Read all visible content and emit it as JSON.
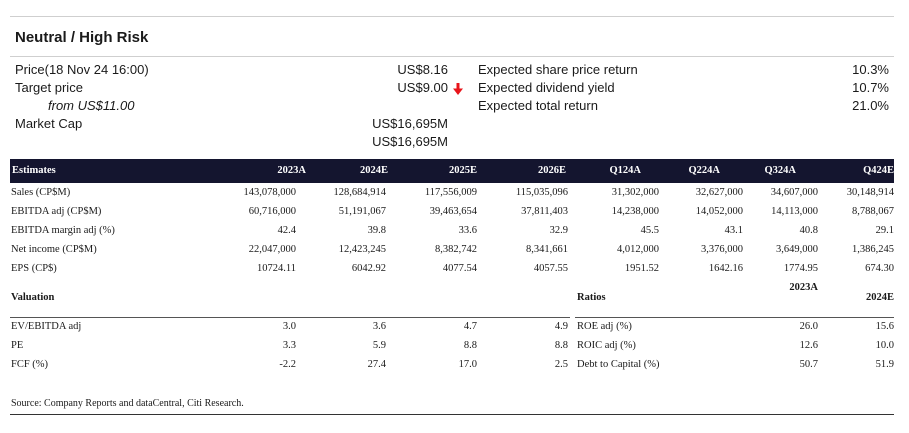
{
  "title": "Neutral / High Risk",
  "summary": {
    "price_label": "Price(18 Nov 24 16:00)",
    "price_value": "US$8.16",
    "target_label": "Target price",
    "target_value": "US$9.00",
    "target_arrow": "down-arrow-icon",
    "target_arrow_color": "#e8141a",
    "from_label": "from US$11.00",
    "marketcap_label": "Market Cap",
    "marketcap_value1": "US$16,695M",
    "marketcap_value2": "US$16,695M",
    "exp_share_label": "Expected share price return",
    "exp_share_value": "10.3%",
    "exp_div_label": "Expected dividend yield",
    "exp_div_value": "10.7%",
    "exp_total_label": "Expected total return",
    "exp_total_value": "21.0%"
  },
  "estimates": {
    "headers": [
      "Estimates",
      "2023A",
      "2024E",
      "2025E",
      "2026E",
      "Q124A",
      "Q224A",
      "Q324A",
      "Q424E"
    ],
    "rows": [
      [
        "Sales (CP$M)",
        "143,078,000",
        "128,684,914",
        "117,556,009",
        "115,035,096",
        "31,302,000",
        "32,627,000",
        "34,607,000",
        "30,148,914"
      ],
      [
        "EBITDA adj (CP$M)",
        "60,716,000",
        "51,191,067",
        "39,463,654",
        "37,811,403",
        "14,238,000",
        "14,052,000",
        "14,113,000",
        "8,788,067"
      ],
      [
        "EBITDA margin adj (%)",
        "42.4",
        "39.8",
        "33.6",
        "32.9",
        "45.5",
        "43.1",
        "40.8",
        "29.1"
      ],
      [
        "Net income (CP$M)",
        "22,047,000",
        "12,423,245",
        "8,382,742",
        "8,341,661",
        "4,012,000",
        "3,376,000",
        "3,649,000",
        "1,386,245"
      ],
      [
        "EPS (CP$)",
        "10724.11",
        "6042.92",
        "4077.54",
        "4057.55",
        "1951.52",
        "1642.16",
        "1774.95",
        "674.30"
      ]
    ]
  },
  "valuation": {
    "title": "Valuation",
    "rows": [
      [
        "EV/EBITDA adj",
        "3.0",
        "3.6",
        "4.7",
        "4.9"
      ],
      [
        "PE",
        "3.3",
        "5.9",
        "8.8",
        "8.8"
      ],
      [
        "FCF (%)",
        "-2.2",
        "27.4",
        "17.0",
        "2.5"
      ]
    ]
  },
  "ratios": {
    "title": "Ratios",
    "col1": "2023A",
    "col2": "2024E",
    "rows": [
      [
        "ROE adj  (%)",
        "26.0",
        "15.6"
      ],
      [
        "ROIC adj (%)",
        "12.6",
        "10.0"
      ],
      [
        "Debt to Capital (%)",
        "50.7",
        "51.9"
      ]
    ]
  },
  "source": "Source: Company Reports and dataCentral, Citi Research."
}
